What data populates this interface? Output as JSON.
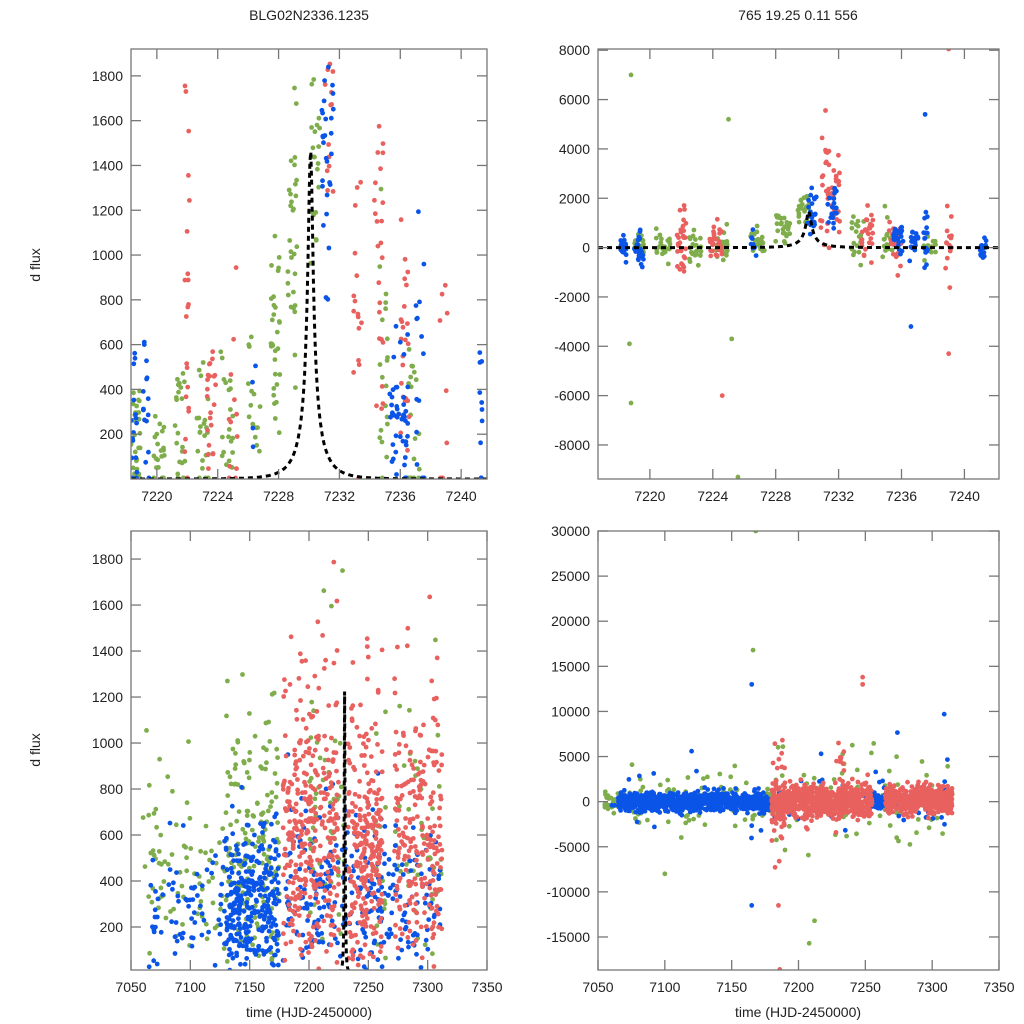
{
  "figure": {
    "title_left": "BLG02N2336.1235",
    "title_right": "765  19.25  0.11  556",
    "colors": {
      "green": "#7fad4c",
      "red": "#e8615e",
      "blue": "#0a55e8",
      "model": "#000000"
    }
  },
  "chart_data": [
    {
      "id": "top-left",
      "type": "scatter",
      "title": "BLG02N2336.1235",
      "xlabel": "",
      "ylabel": "d flux",
      "xlim": [
        7218.3,
        7241.7
      ],
      "ylim": [
        0,
        1920
      ],
      "xticks": [
        "7220",
        "7224",
        "7228",
        "7232",
        "7236",
        "7240"
      ],
      "xtick_values": [
        7220,
        7224,
        7228,
        7232,
        7236,
        7240
      ],
      "yticks": [
        "200",
        "400",
        "600",
        "800",
        "1000",
        "1200",
        "1400",
        "1600",
        "1800"
      ],
      "ytick_values": [
        200,
        400,
        600,
        800,
        1000,
        1200,
        1400,
        1600,
        1800
      ],
      "model": {
        "name": "microlensing fit",
        "t0": 7230.1,
        "peak": 1470,
        "tE": 1.6,
        "baseline": 0,
        "style": "dashed"
      },
      "series": [
        {
          "name": "green",
          "clusters": [
            {
              "t": 7218.6,
              "dt": 0.3,
              "mean": 200,
              "sd": 150,
              "n": 30
            },
            {
              "t": 7220.2,
              "dt": 0.4,
              "mean": 150,
              "sd": 120,
              "n": 20
            },
            {
              "t": 7221.5,
              "dt": 0.4,
              "mean": 200,
              "sd": 150,
              "n": 22
            },
            {
              "t": 7223.0,
              "dt": 0.4,
              "mean": 220,
              "sd": 160,
              "n": 22
            },
            {
              "t": 7224.6,
              "dt": 0.4,
              "mean": 250,
              "sd": 150,
              "n": 20
            },
            {
              "t": 7226.4,
              "dt": 0.4,
              "mean": 300,
              "sd": 200,
              "n": 16
            },
            {
              "t": 7227.8,
              "dt": 0.3,
              "mean": 650,
              "sd": 200,
              "n": 30
            },
            {
              "t": 7228.9,
              "dt": 0.3,
              "mean": 1100,
              "sd": 300,
              "n": 30
            },
            {
              "t": 7230.4,
              "dt": 0.3,
              "mean": 1500,
              "sd": 350,
              "n": 22
            },
            {
              "t": 7234.9,
              "dt": 0.3,
              "mean": 500,
              "sd": 300,
              "n": 20
            },
            {
              "t": 7236.9,
              "dt": 0.4,
              "mean": 300,
              "sd": 250,
              "n": 18
            }
          ]
        },
        {
          "name": "red",
          "clusters": [
            {
              "t": 7222.0,
              "dt": 0.2,
              "mean": 600,
              "sd": 500,
              "n": 22
            },
            {
              "t": 7223.6,
              "dt": 0.3,
              "mean": 300,
              "sd": 200,
              "n": 22
            },
            {
              "t": 7225.0,
              "dt": 0.3,
              "mean": 250,
              "sd": 250,
              "n": 12
            },
            {
              "t": 7231.3,
              "dt": 0.3,
              "mean": 1600,
              "sd": 250,
              "n": 14
            },
            {
              "t": 7233.2,
              "dt": 0.3,
              "mean": 900,
              "sd": 350,
              "n": 16
            },
            {
              "t": 7234.6,
              "dt": 0.3,
              "mean": 800,
              "sd": 450,
              "n": 24
            },
            {
              "t": 7236.3,
              "dt": 0.3,
              "mean": 500,
              "sd": 300,
              "n": 24
            },
            {
              "t": 7238.9,
              "dt": 0.3,
              "mean": 450,
              "sd": 300,
              "n": 8
            }
          ]
        },
        {
          "name": "blue",
          "clusters": [
            {
              "t": 7218.5,
              "dt": 0.2,
              "mean": 250,
              "sd": 150,
              "n": 16
            },
            {
              "t": 7219.3,
              "dt": 0.2,
              "mean": 250,
              "sd": 150,
              "n": 16
            },
            {
              "t": 7226.5,
              "dt": 0.3,
              "mean": 350,
              "sd": 150,
              "n": 4
            },
            {
              "t": 7231.2,
              "dt": 0.4,
              "mean": 1450,
              "sd": 350,
              "n": 30
            },
            {
              "t": 7235.6,
              "dt": 0.3,
              "mean": 300,
              "sd": 200,
              "n": 22
            },
            {
              "t": 7236.3,
              "dt": 0.3,
              "mean": 300,
              "sd": 250,
              "n": 22
            },
            {
              "t": 7237.3,
              "dt": 0.3,
              "mean": 350,
              "sd": 400,
              "n": 14
            },
            {
              "t": 7241.3,
              "dt": 0.1,
              "mean": 250,
              "sd": 200,
              "n": 10
            }
          ]
        }
      ]
    },
    {
      "id": "top-right",
      "type": "scatter",
      "title": "765  19.25  0.11  556",
      "xlabel": "",
      "ylabel": "",
      "xlim": [
        7216.7,
        7242.2
      ],
      "ylim": [
        -9380,
        8050
      ],
      "xticks": [
        "7220",
        "7224",
        "7228",
        "7232",
        "7236",
        "7240"
      ],
      "xtick_values": [
        7220,
        7224,
        7228,
        7232,
        7236,
        7240
      ],
      "yticks": [
        "-8000",
        "-6000",
        "-4000",
        "-2000",
        "0",
        "2000",
        "4000",
        "6000",
        "8000"
      ],
      "ytick_values": [
        -8000,
        -6000,
        -4000,
        -2000,
        0,
        2000,
        4000,
        6000,
        8000
      ],
      "model": {
        "name": "microlensing fit",
        "t0": 7230.1,
        "peak": 1470,
        "tE": 1.6,
        "baseline": 0,
        "style": "dashed"
      },
      "series": [
        {
          "name": "green",
          "clusters": [
            {
              "t": 7219.3,
              "dt": 0.3,
              "mean": 100,
              "sd": 300,
              "n": 22
            },
            {
              "t": 7220.8,
              "dt": 0.5,
              "mean": 0,
              "sd": 250,
              "n": 26
            },
            {
              "t": 7222.9,
              "dt": 0.4,
              "mean": 0,
              "sd": 300,
              "n": 24
            },
            {
              "t": 7224.6,
              "dt": 0.4,
              "mean": 100,
              "sd": 350,
              "n": 24
            },
            {
              "t": 7226.8,
              "dt": 0.5,
              "mean": 250,
              "sd": 250,
              "n": 20
            },
            {
              "t": 7228.5,
              "dt": 0.5,
              "mean": 800,
              "sd": 300,
              "n": 26
            },
            {
              "t": 7229.8,
              "dt": 0.4,
              "mean": 1500,
              "sd": 350,
              "n": 22
            },
            {
              "t": 7233.2,
              "dt": 0.4,
              "mean": 500,
              "sd": 500,
              "n": 20
            },
            {
              "t": 7235.2,
              "dt": 0.4,
              "mean": 100,
              "sd": 500,
              "n": 16
            },
            {
              "t": 7237.8,
              "dt": 0.4,
              "mean": 0,
              "sd": 300,
              "n": 12
            }
          ]
        },
        {
          "name": "red",
          "clusters": [
            {
              "t": 7222.0,
              "dt": 0.3,
              "mean": 300,
              "sd": 600,
              "n": 30
            },
            {
              "t": 7224.2,
              "dt": 0.4,
              "mean": 150,
              "sd": 450,
              "n": 28
            },
            {
              "t": 7231.1,
              "dt": 0.3,
              "mean": 2500,
              "sd": 1200,
              "n": 24
            },
            {
              "t": 7231.8,
              "dt": 0.3,
              "mean": 2200,
              "sd": 900,
              "n": 22
            },
            {
              "t": 7233.8,
              "dt": 0.4,
              "mean": 600,
              "sd": 700,
              "n": 26
            },
            {
              "t": 7235.6,
              "dt": 0.4,
              "mean": 300,
              "sd": 500,
              "n": 26
            },
            {
              "t": 7239.0,
              "dt": 0.2,
              "mean": 0,
              "sd": 900,
              "n": 14
            }
          ]
        },
        {
          "name": "blue",
          "clusters": [
            {
              "t": 7218.3,
              "dt": 0.2,
              "mean": 0,
              "sd": 300,
              "n": 22
            },
            {
              "t": 7219.3,
              "dt": 0.3,
              "mean": 0,
              "sd": 300,
              "n": 28
            },
            {
              "t": 7226.6,
              "dt": 0.2,
              "mean": 0,
              "sd": 350,
              "n": 8
            },
            {
              "t": 7230.3,
              "dt": 0.3,
              "mean": 1500,
              "sd": 500,
              "n": 24
            },
            {
              "t": 7231.6,
              "dt": 0.3,
              "mean": 1600,
              "sd": 600,
              "n": 22
            },
            {
              "t": 7235.8,
              "dt": 0.3,
              "mean": 200,
              "sd": 350,
              "n": 22
            },
            {
              "t": 7236.8,
              "dt": 0.3,
              "mean": 100,
              "sd": 350,
              "n": 18
            },
            {
              "t": 7237.6,
              "dt": 0.2,
              "mean": 100,
              "sd": 600,
              "n": 18
            },
            {
              "t": 7241.2,
              "dt": 0.2,
              "mean": 0,
              "sd": 250,
              "n": 18
            }
          ]
        }
      ],
      "outliers": [
        {
          "x": 7218.8,
          "y": 7000,
          "series": "green"
        },
        {
          "x": 7239.0,
          "y": 8050,
          "series": "red"
        },
        {
          "x": 7225.6,
          "y": -9300,
          "series": "green"
        },
        {
          "x": 7218.8,
          "y": -6300,
          "series": "green"
        },
        {
          "x": 7225.0,
          "y": 5200,
          "series": "green"
        },
        {
          "x": 7237.5,
          "y": 5400,
          "series": "blue"
        },
        {
          "x": 7236.6,
          "y": -3200,
          "series": "blue"
        },
        {
          "x": 7239.0,
          "y": -4300,
          "series": "red"
        },
        {
          "x": 7224.6,
          "y": -6000,
          "series": "red"
        },
        {
          "x": 7225.2,
          "y": -3700,
          "series": "green"
        },
        {
          "x": 7218.7,
          "y": -3900,
          "series": "green"
        }
      ]
    },
    {
      "id": "bottom-left",
      "type": "scatter",
      "title": "",
      "xlabel": "time (HJD-2450000)",
      "ylabel": "d flux",
      "xlim": [
        7050,
        7350
      ],
      "ylim": [
        13,
        1922
      ],
      "xticks": [
        "7050",
        "7100",
        "7150",
        "7200",
        "7250",
        "7300",
        "7350"
      ],
      "xtick_values": [
        7050,
        7100,
        7150,
        7200,
        7250,
        7300,
        7350
      ],
      "yticks": [
        "200",
        "400",
        "600",
        "800",
        "1000",
        "1200",
        "1400",
        "1600",
        "1800"
      ],
      "ytick_values": [
        200,
        400,
        600,
        800,
        1000,
        1200,
        1400,
        1600,
        1800
      ],
      "model": {
        "name": "microlensing fit",
        "t0": 7230.1,
        "peak": 1470,
        "tE": 1.6,
        "baseline": 0,
        "style": "dashed"
      },
      "series": [
        {
          "name": "green",
          "segments": [
            {
              "t0": 7060,
              "t1": 7130,
              "mean": 200,
              "sd": 350,
              "n": 80
            },
            {
              "t0": 7130,
              "t1": 7175,
              "mean": 350,
              "sd": 350,
              "n": 160
            },
            {
              "t0": 7200,
              "t1": 7230,
              "mean": 400,
              "sd": 500,
              "n": 50
            },
            {
              "t0": 7255,
              "t1": 7312,
              "mean": 300,
              "sd": 500,
              "n": 60
            }
          ]
        },
        {
          "name": "blue",
          "segments": [
            {
              "t0": 7065,
              "t1": 7130,
              "mean": 150,
              "sd": 250,
              "n": 70
            },
            {
              "t0": 7130,
              "t1": 7175,
              "mean": 200,
              "sd": 200,
              "n": 300
            },
            {
              "t0": 7178,
              "t1": 7260,
              "mean": 200,
              "sd": 250,
              "n": 180
            },
            {
              "t0": 7260,
              "t1": 7312,
              "mean": 200,
              "sd": 200,
              "n": 90
            }
          ]
        },
        {
          "name": "red",
          "segments": [
            {
              "t0": 7178,
              "t1": 7225,
              "mean": 350,
              "sd": 500,
              "n": 330
            },
            {
              "t0": 7233,
              "t1": 7262,
              "mean": 300,
              "sd": 450,
              "n": 250
            },
            {
              "t0": 7272,
              "t1": 7312,
              "mean": 300,
              "sd": 500,
              "n": 220
            }
          ]
        }
      ]
    },
    {
      "id": "bottom-right",
      "type": "scatter",
      "title": "",
      "xlabel": "time (HJD-2450000)",
      "ylabel": "",
      "xlim": [
        7050,
        7350
      ],
      "ylim": [
        -18660,
        30000
      ],
      "xticks": [
        "7050",
        "7100",
        "7150",
        "7200",
        "7250",
        "7300",
        "7350"
      ],
      "xtick_values": [
        7050,
        7100,
        7150,
        7200,
        7250,
        7300,
        7350
      ],
      "yticks": [
        "-15000",
        "-10000",
        "-5000",
        "0",
        "5000",
        "10000",
        "15000",
        "20000",
        "25000",
        "30000"
      ],
      "ytick_values": [
        -15000,
        -10000,
        -5000,
        0,
        5000,
        10000,
        15000,
        20000,
        25000,
        30000
      ],
      "series": [
        {
          "name": "green",
          "segments": [
            {
              "t0": 7055,
              "t1": 7070,
              "mean": 0,
              "sd": 600,
              "n": 40
            },
            {
              "t0": 7070,
              "t1": 7175,
              "mean": 0,
              "sd": 1600,
              "n": 90
            },
            {
              "t0": 7176,
              "t1": 7182,
              "mean": 0,
              "sd": 500,
              "n": 60
            },
            {
              "t0": 7182,
              "t1": 7315,
              "mean": 0,
              "sd": 2800,
              "n": 90
            }
          ]
        },
        {
          "name": "blue",
          "segments": [
            {
              "t0": 7065,
              "t1": 7178,
              "mean": 0,
              "sd": 500,
              "n": 900
            },
            {
              "t0": 7060,
              "t1": 7315,
              "mean": 0,
              "sd": 2000,
              "n": 60
            },
            {
              "t0": 7255,
              "t1": 7265,
              "mean": 0,
              "sd": 400,
              "n": 60
            }
          ]
        },
        {
          "name": "red",
          "segments": [
            {
              "t0": 7180,
              "t1": 7255,
              "mean": 0,
              "sd": 900,
              "n": 700
            },
            {
              "t0": 7265,
              "t1": 7315,
              "mean": 200,
              "sd": 700,
              "n": 500
            },
            {
              "t0": 7180,
              "t1": 7190,
              "mean": 0,
              "sd": 3500,
              "n": 40
            },
            {
              "t0": 7228,
              "t1": 7234,
              "mean": 2000,
              "sd": 2000,
              "n": 30
            }
          ]
        }
      ],
      "outliers": [
        {
          "x": 7168,
          "y": 30000,
          "series": "green"
        },
        {
          "x": 7166,
          "y": 16800,
          "series": "green"
        },
        {
          "x": 7165,
          "y": 13000,
          "series": "blue"
        },
        {
          "x": 7248,
          "y": 13800,
          "series": "red"
        },
        {
          "x": 7248,
          "y": 13000,
          "series": "red"
        },
        {
          "x": 7309,
          "y": 9700,
          "series": "blue"
        },
        {
          "x": 7186,
          "y": -18600,
          "series": "red"
        },
        {
          "x": 7208,
          "y": -15700,
          "series": "green"
        },
        {
          "x": 7212,
          "y": -13200,
          "series": "green"
        },
        {
          "x": 7185,
          "y": -11500,
          "series": "red"
        },
        {
          "x": 7100,
          "y": -8000,
          "series": "green"
        },
        {
          "x": 7165,
          "y": -11500,
          "series": "blue"
        }
      ]
    }
  ]
}
